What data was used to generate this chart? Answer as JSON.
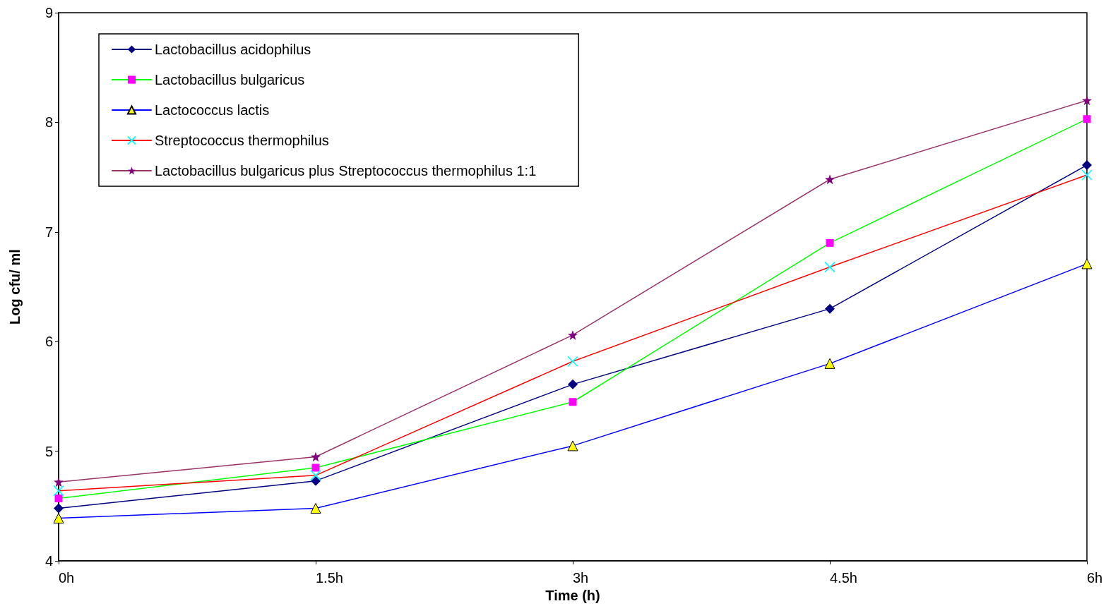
{
  "chart_data": {
    "type": "line",
    "xlabel": "Time (h)",
    "ylabel": "Log cfu/ ml",
    "categories": [
      "0h",
      "1.5h",
      "3h",
      "4.5h",
      "6h"
    ],
    "ylim": [
      4,
      9
    ],
    "yticks": [
      4,
      5,
      6,
      7,
      8,
      9
    ],
    "grid": false,
    "legend": "top left",
    "series": [
      {
        "name": "Lactobacillus acidophilus",
        "color": "#000080",
        "colors": [
          "#000080",
          "#000080",
          "#000080",
          "#000080",
          "#000080"
        ],
        "marker": "diamond",
        "values": [
          4.48,
          4.73,
          5.61,
          6.3,
          7.61
        ]
      },
      {
        "name": "Lactobacillus bulgaricus",
        "color": "#00ff00",
        "colors": [
          "#ff00ff",
          "#ff00ff",
          "#ff00ff",
          "#ff00ff",
          "#ff00ff"
        ],
        "marker": "square",
        "values": [
          4.57,
          4.85,
          5.45,
          6.9,
          8.03
        ]
      },
      {
        "name": "Lactococcus lactis",
        "color": "#0000ff",
        "colors": [
          "#ffff00",
          "#ffff00",
          "#ffff00",
          "#ffff00",
          "#ffff00"
        ],
        "marker": "triangle",
        "values": [
          4.39,
          4.48,
          5.05,
          5.8,
          6.71
        ]
      },
      {
        "name": "Streptococcus thermophilus",
        "color": "#ff0000",
        "colors": [
          "#00ffff",
          "#00ffff",
          "#00ffff",
          "#00ffff",
          "#00ffff"
        ],
        "marker": "cross",
        "values": [
          4.64,
          4.78,
          5.82,
          6.68,
          7.52
        ]
      },
      {
        "name": "Lactobacillus bulgaricus plus Streptococcus thermophilus 1:1",
        "color": "#993366",
        "colors": [
          "#800080",
          "#800080",
          "#800080",
          "#800080",
          "#800080"
        ],
        "marker": "star",
        "values": [
          4.72,
          4.95,
          6.06,
          7.48,
          8.2
        ]
      }
    ]
  }
}
